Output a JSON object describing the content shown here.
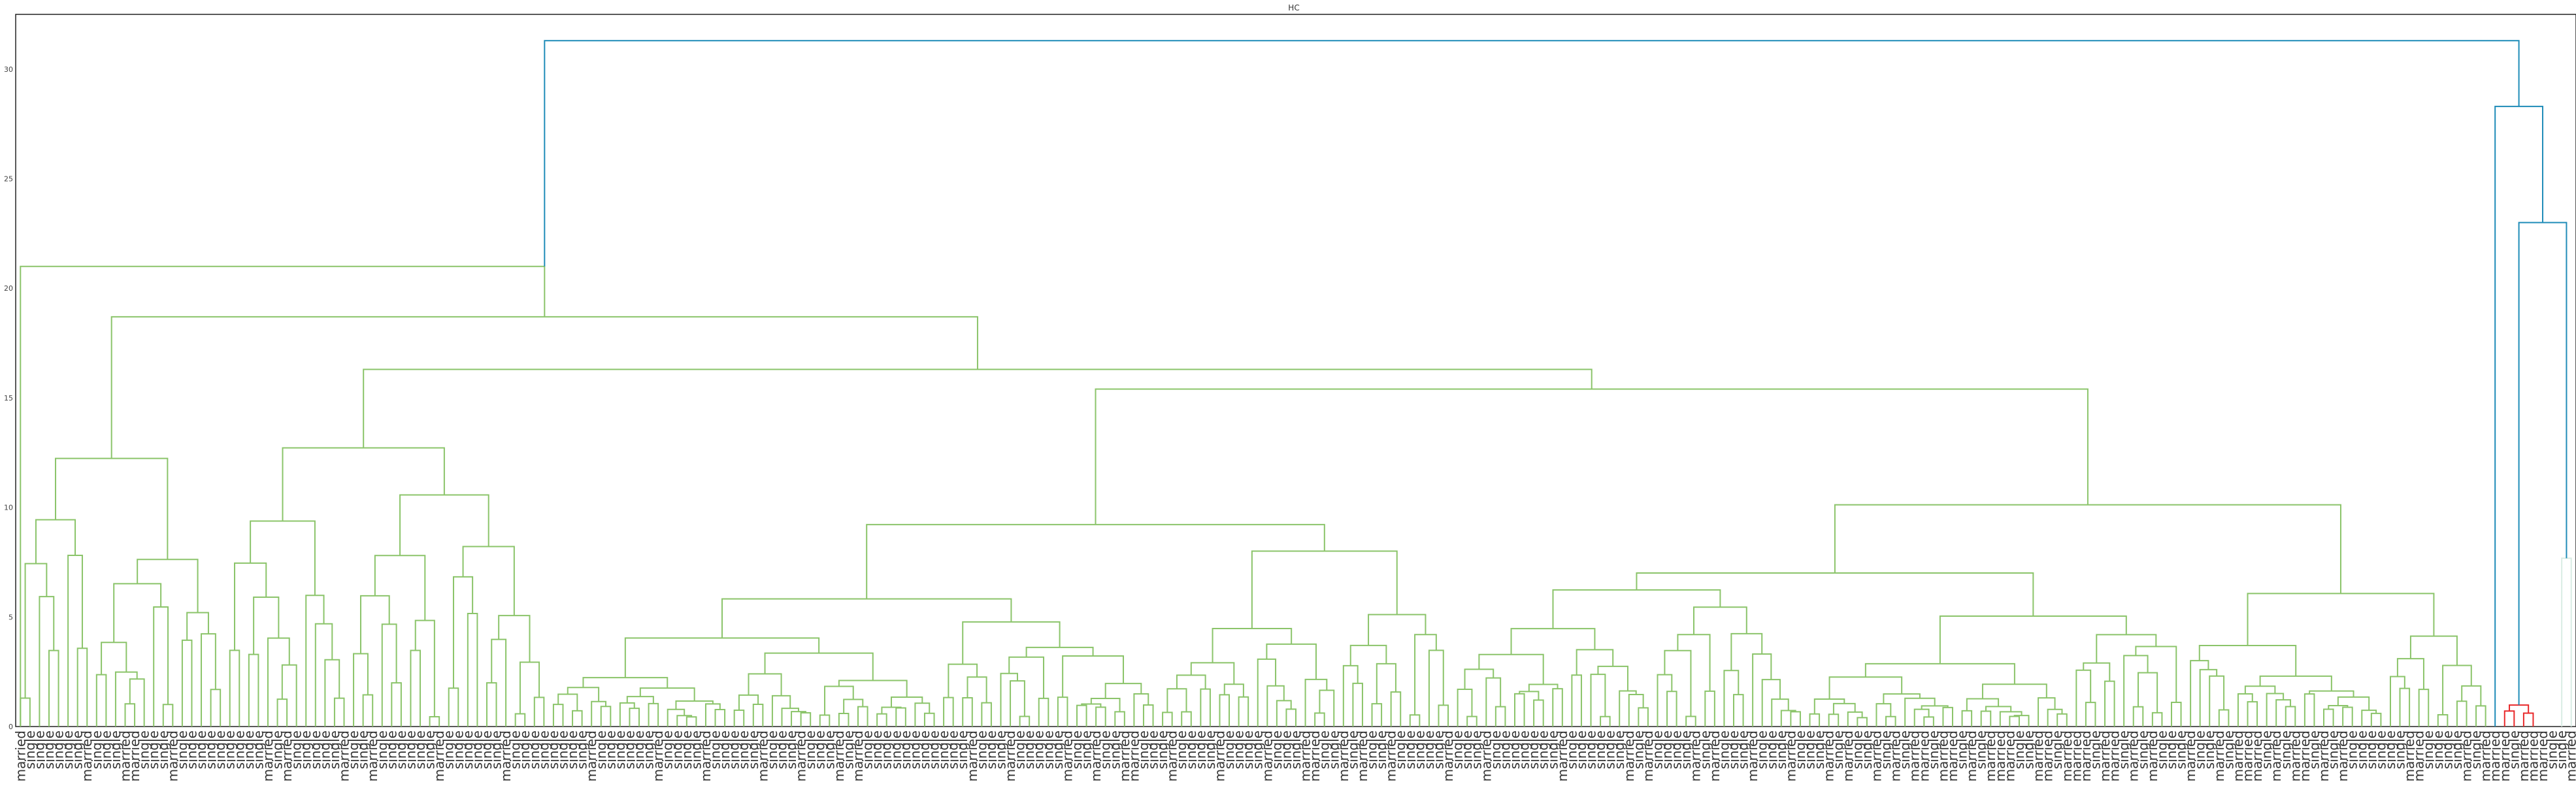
{
  "chart_data": {
    "type": "dendrogram",
    "title": "HC",
    "xlabel": "",
    "ylabel": "",
    "ylim": [
      0,
      32.5
    ],
    "yticks": [
      0,
      5,
      10,
      15,
      20,
      25,
      30
    ],
    "grid": false,
    "legend": "none",
    "colors": {
      "cluster_1": "#8bc46a",
      "cluster_2": "#e8282a",
      "cluster_3": "#d9ece4",
      "above_threshold": "#1f8cb8"
    },
    "leaf_labels": [
      "married",
      "single",
      "single",
      "single",
      "single",
      "single",
      "single",
      "married",
      "single",
      "single",
      "single",
      "married",
      "married",
      "single",
      "single",
      "single",
      "married",
      "single",
      "single",
      "single",
      "single",
      "single",
      "single",
      "single",
      "single",
      "single",
      "married",
      "single",
      "married",
      "single",
      "single",
      "single",
      "single",
      "single",
      "married",
      "single",
      "single",
      "married",
      "single",
      "single",
      "single",
      "single",
      "single",
      "single",
      "married",
      "single",
      "single",
      "single",
      "single",
      "single",
      "single",
      "married",
      "single",
      "single",
      "single",
      "single",
      "single",
      "single",
      "single",
      "single",
      "married",
      "single",
      "single",
      "single",
      "single",
      "single",
      "single",
      "married",
      "single",
      "single",
      "single",
      "single",
      "married",
      "single",
      "single",
      "single",
      "single",
      "single",
      "married",
      "single",
      "single",
      "single",
      "married",
      "single",
      "single",
      "single",
      "married",
      "single",
      "married",
      "single",
      "single",
      "single",
      "single",
      "single",
      "single",
      "single",
      "single",
      "single",
      "single",
      "single",
      "married",
      "single",
      "single",
      "single",
      "married",
      "single",
      "single",
      "single",
      "single",
      "single",
      "married",
      "single",
      "single",
      "married",
      "single",
      "single",
      "married",
      "married",
      "single",
      "single",
      "single",
      "married",
      "single",
      "single",
      "single",
      "single",
      "married",
      "single",
      "single",
      "single",
      "single",
      "married",
      "single",
      "single",
      "single",
      "married",
      "married",
      "single",
      "single",
      "married",
      "single",
      "married",
      "single",
      "single",
      "married",
      "single",
      "single",
      "single",
      "single",
      "single",
      "married",
      "single",
      "single",
      "single",
      "married",
      "single",
      "single",
      "single",
      "single",
      "single",
      "single",
      "single",
      "married",
      "single",
      "single",
      "single",
      "single",
      "single",
      "single",
      "married",
      "single",
      "married",
      "single",
      "single",
      "single",
      "single",
      "married",
      "single",
      "married",
      "single",
      "single",
      "single",
      "married",
      "single",
      "single",
      "single",
      "married",
      "single",
      "single",
      "single",
      "married",
      "single",
      "married",
      "single",
      "single",
      "married",
      "single",
      "married",
      "single",
      "married",
      "married",
      "single",
      "married",
      "married",
      "single",
      "married",
      "single",
      "married",
      "married",
      "married",
      "single",
      "single",
      "married",
      "married",
      "single",
      "married",
      "married",
      "married",
      "single",
      "married",
      "married",
      "single",
      "married",
      "single",
      "married",
      "single",
      "single",
      "single",
      "married",
      "single",
      "single",
      "married",
      "single",
      "married",
      "married",
      "married",
      "single",
      "married",
      "single",
      "married",
      "married",
      "single",
      "married",
      "single",
      "married",
      "single",
      "single",
      "single",
      "single",
      "single",
      "single",
      "married",
      "married",
      "single",
      "single",
      "single",
      "single",
      "married",
      "single",
      "married",
      "married",
      "married",
      "single",
      "married",
      "married",
      "married",
      "single",
      "single",
      "married"
    ],
    "merge_heights": {
      "root": 31.3,
      "left_cluster_top": 21.0,
      "right_cluster_top": 28.3,
      "right_inner": 23.0,
      "red_cluster": 1.7,
      "pale_cluster": 21.0
    }
  }
}
